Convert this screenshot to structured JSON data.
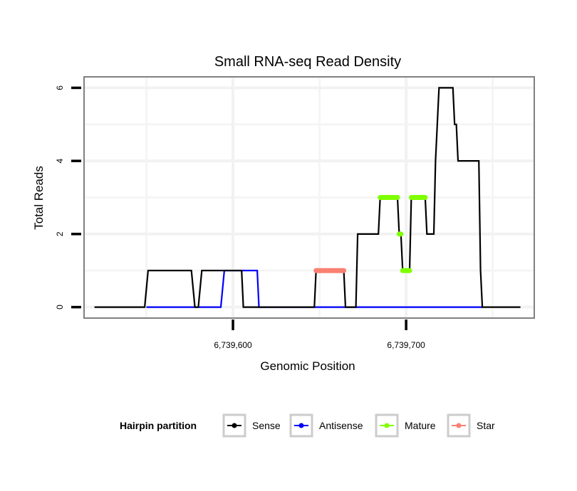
{
  "chart_data": {
    "type": "line",
    "title": "Small RNA-seq Read Density",
    "xlabel": "Genomic Position",
    "ylabel": "Total Reads",
    "xlim": [
      6739514,
      6739774
    ],
    "ylim": [
      -0.3,
      6.3
    ],
    "x_ticks": [
      6739600,
      6739700
    ],
    "x_tick_labels": [
      "6,739,600",
      "6,739,700"
    ],
    "y_ticks": [
      0,
      2,
      4,
      6
    ],
    "y_tick_labels": [
      "0",
      "2",
      "4",
      "6"
    ],
    "x_minor_grid": [
      6739550,
      6739650,
      6739750
    ],
    "y_minor_grid": [
      1,
      3,
      5
    ],
    "grid": true,
    "legend": {
      "title": "Hairpin partition",
      "position": "bottom",
      "entries": [
        "Sense",
        "Antisense",
        "Mature",
        "Star"
      ]
    },
    "series": [
      {
        "name": "Sense",
        "color": "#000000",
        "style": "line",
        "points": [
          [
            6739520,
            0
          ],
          [
            6739549,
            0
          ],
          [
            6739551,
            1
          ],
          [
            6739576,
            1
          ],
          [
            6739578,
            0
          ],
          [
            6739580,
            0
          ],
          [
            6739582,
            1
          ],
          [
            6739605,
            1
          ],
          [
            6739606,
            0
          ],
          [
            6739647,
            0
          ],
          [
            6739648,
            1
          ],
          [
            6739664,
            1
          ],
          [
            6739665,
            0
          ],
          [
            6739671,
            0
          ],
          [
            6739672,
            2
          ],
          [
            6739684,
            2
          ],
          [
            6739685,
            3
          ],
          [
            6739695,
            3
          ],
          [
            6739696,
            2
          ],
          [
            6739697,
            2
          ],
          [
            6739698,
            1
          ],
          [
            6739702,
            1
          ],
          [
            6739703,
            3
          ],
          [
            6739711,
            3
          ],
          [
            6739712,
            2
          ],
          [
            6739716,
            2
          ],
          [
            6739717,
            4
          ],
          [
            6739719,
            6
          ],
          [
            6739727,
            6
          ],
          [
            6739728,
            5
          ],
          [
            6739729,
            5
          ],
          [
            6739730,
            4
          ],
          [
            6739742,
            4
          ],
          [
            6739743,
            1
          ],
          [
            6739744,
            0
          ],
          [
            6739766,
            0
          ]
        ]
      },
      {
        "name": "Antisense",
        "color": "#0000ff",
        "style": "line",
        "points": [
          [
            6739550,
            0
          ],
          [
            6739593,
            0
          ],
          [
            6739595,
            1
          ],
          [
            6739614,
            1
          ],
          [
            6739615,
            0
          ],
          [
            6739744,
            0
          ]
        ]
      },
      {
        "name": "Mature",
        "color": "#7fff00",
        "style": "thick-segments",
        "segments": [
          [
            6739685,
            6739695,
            3
          ],
          [
            6739696,
            6739697,
            2
          ],
          [
            6739698,
            6739702,
            1
          ],
          [
            6739703,
            6739711,
            3
          ]
        ]
      },
      {
        "name": "Star",
        "color": "#fa8072",
        "style": "thick-segments",
        "segments": [
          [
            6739648,
            6739664,
            1
          ]
        ]
      }
    ]
  }
}
